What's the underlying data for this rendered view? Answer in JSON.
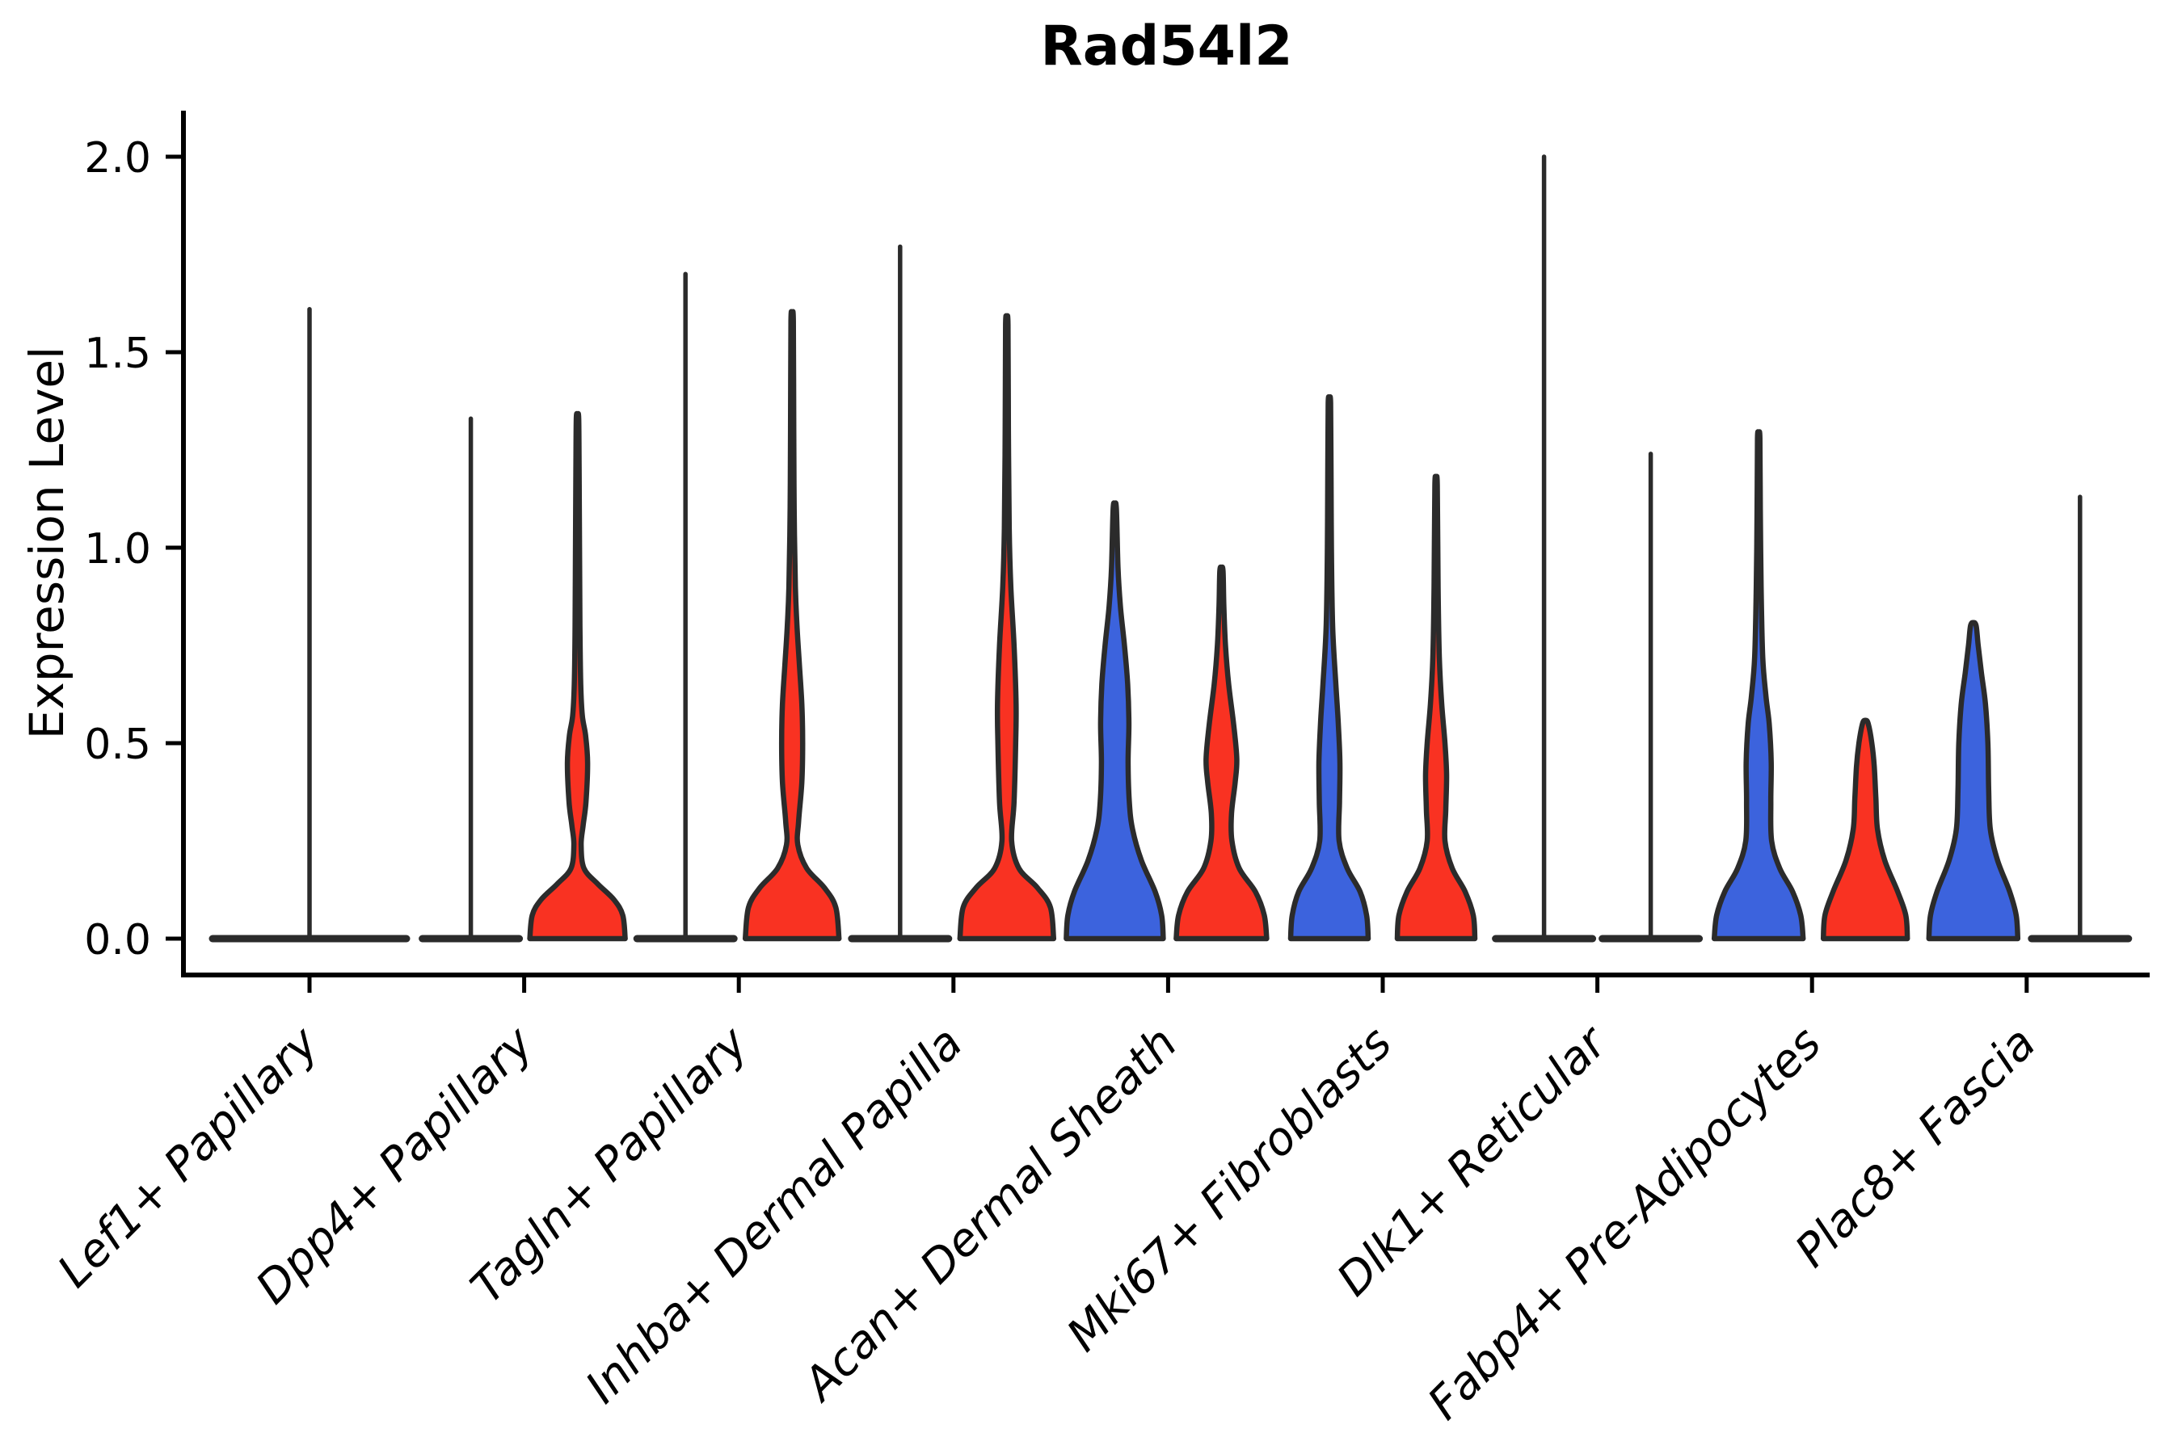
{
  "chart_data": {
    "type": "violin",
    "title": "Rad54l2",
    "ylabel": "Expression Level",
    "xlabel": "",
    "grid": false,
    "legend": null,
    "ylim": [
      -0.09,
      2.11
    ],
    "ytick_labels": [
      "0.0",
      "0.5",
      "1.0",
      "1.5",
      "2.0"
    ],
    "ytick_values": [
      0.0,
      0.5,
      1.0,
      1.5,
      2.0
    ],
    "palette": {
      "blue": "#3C63DD",
      "red": "#F93222",
      "outline": "#2B2B2B",
      "axis": "#000000"
    },
    "categories": [
      {
        "label": "Lef1+ Papillary",
        "violins": [
          {
            "condition": "blue",
            "kind": "spike",
            "max": 1.61,
            "offset": 0,
            "flat_half": 120
          },
          {
            "condition": "red",
            "kind": "none",
            "max": 0.0
          }
        ]
      },
      {
        "label": "Dpp4+ Papillary",
        "violins": [
          {
            "condition": "blue",
            "kind": "spike",
            "max": 1.33,
            "offset": -66,
            "flat_half": 60
          },
          {
            "condition": "red",
            "kind": "body",
            "max": 1.33,
            "offset": 66,
            "profile": [
              [
                0,
                59
              ],
              [
                0.06,
                56
              ],
              [
                0.1,
                45
              ],
              [
                0.14,
                25
              ],
              [
                0.18,
                8
              ],
              [
                0.24,
                4.5
              ],
              [
                0.29,
                7
              ],
              [
                0.35,
                10.5
              ],
              [
                0.45,
                12.5
              ],
              [
                0.52,
                10
              ],
              [
                0.57,
                6
              ],
              [
                0.65,
                4
              ],
              [
                0.8,
                3
              ],
              [
                1.0,
                2.5
              ],
              [
                1.2,
                2
              ],
              [
                1.33,
                1.5
              ]
            ]
          }
        ]
      },
      {
        "label": "Tagln+ Papillary",
        "violins": [
          {
            "condition": "blue",
            "kind": "spike",
            "max": 1.7,
            "offset": -66,
            "flat_half": 60
          },
          {
            "condition": "red",
            "kind": "body",
            "max": 1.58,
            "offset": 66,
            "profile": [
              [
                0,
                58
              ],
              [
                0.08,
                54
              ],
              [
                0.13,
                40
              ],
              [
                0.18,
                18
              ],
              [
                0.24,
                7
              ],
              [
                0.3,
                8
              ],
              [
                0.4,
                12
              ],
              [
                0.5,
                13
              ],
              [
                0.6,
                12
              ],
              [
                0.7,
                9
              ],
              [
                0.8,
                6
              ],
              [
                0.9,
                4
              ],
              [
                1.1,
                2.5
              ],
              [
                1.3,
                2
              ],
              [
                1.58,
                1.5
              ]
            ]
          }
        ]
      },
      {
        "label": "Inhba+ Dermal Papilla",
        "violins": [
          {
            "condition": "blue",
            "kind": "spike",
            "max": 1.77,
            "offset": -66,
            "flat_half": 60
          },
          {
            "condition": "red",
            "kind": "body",
            "max": 1.57,
            "offset": 66,
            "profile": [
              [
                0,
                58
              ],
              [
                0.08,
                54
              ],
              [
                0.13,
                38
              ],
              [
                0.18,
                15
              ],
              [
                0.25,
                6
              ],
              [
                0.35,
                9
              ],
              [
                0.5,
                11
              ],
              [
                0.6,
                11.5
              ],
              [
                0.75,
                9
              ],
              [
                0.9,
                5
              ],
              [
                1.05,
                3
              ],
              [
                1.3,
                2
              ],
              [
                1.57,
                1.5
              ]
            ]
          }
        ]
      },
      {
        "label": "Acan+ Dermal Sheath",
        "violins": [
          {
            "condition": "blue",
            "kind": "body",
            "max": 1.1,
            "offset": -66,
            "profile": [
              [
                0,
                60
              ],
              [
                0.06,
                58
              ],
              [
                0.12,
                50
              ],
              [
                0.2,
                33
              ],
              [
                0.28,
                22
              ],
              [
                0.35,
                18
              ],
              [
                0.45,
                16.5
              ],
              [
                0.55,
                17.5
              ],
              [
                0.65,
                16
              ],
              [
                0.75,
                12
              ],
              [
                0.85,
                7
              ],
              [
                0.95,
                4
              ],
              [
                1.1,
                2
              ]
            ]
          },
          {
            "condition": "red",
            "kind": "body",
            "max": 0.94,
            "offset": 66,
            "profile": [
              [
                0,
                56
              ],
              [
                0.06,
                53
              ],
              [
                0.12,
                42
              ],
              [
                0.18,
                22
              ],
              [
                0.25,
                13
              ],
              [
                0.32,
                12.5
              ],
              [
                0.4,
                17
              ],
              [
                0.46,
                19
              ],
              [
                0.55,
                15
              ],
              [
                0.65,
                9
              ],
              [
                0.75,
                5
              ],
              [
                0.85,
                3
              ],
              [
                0.94,
                2
              ]
            ]
          }
        ]
      },
      {
        "label": "Mki67+ Fibroblasts",
        "violins": [
          {
            "condition": "blue",
            "kind": "body",
            "max": 1.37,
            "offset": -66,
            "profile": [
              [
                0,
                48
              ],
              [
                0.06,
                46
              ],
              [
                0.12,
                38
              ],
              [
                0.18,
                22
              ],
              [
                0.25,
                12
              ],
              [
                0.35,
                12.5
              ],
              [
                0.45,
                13
              ],
              [
                0.55,
                11
              ],
              [
                0.65,
                8
              ],
              [
                0.8,
                4
              ],
              [
                1.0,
                2.5
              ],
              [
                1.2,
                2
              ],
              [
                1.37,
                1.5
              ]
            ]
          },
          {
            "condition": "red",
            "kind": "body",
            "max": 1.16,
            "offset": 66,
            "profile": [
              [
                0,
                48
              ],
              [
                0.06,
                46
              ],
              [
                0.12,
                36
              ],
              [
                0.18,
                20
              ],
              [
                0.25,
                11
              ],
              [
                0.33,
                12
              ],
              [
                0.42,
                13
              ],
              [
                0.5,
                11
              ],
              [
                0.6,
                7
              ],
              [
                0.72,
                4
              ],
              [
                0.9,
                2.5
              ],
              [
                1.16,
                1.5
              ]
            ]
          }
        ]
      },
      {
        "label": "Dlk1+ Reticular",
        "violins": [
          {
            "condition": "blue",
            "kind": "spike",
            "max": 2.0,
            "offset": -66,
            "flat_half": 60
          },
          {
            "condition": "red",
            "kind": "spike",
            "max": 1.24,
            "offset": 66,
            "flat_half": 60
          }
        ]
      },
      {
        "label": "Fabp4+ Pre-Adipocytes",
        "violins": [
          {
            "condition": "blue",
            "kind": "body",
            "max": 1.28,
            "offset": -66,
            "profile": [
              [
                0,
                55
              ],
              [
                0.06,
                52
              ],
              [
                0.12,
                42
              ],
              [
                0.18,
                26
              ],
              [
                0.25,
                16
              ],
              [
                0.35,
                15
              ],
              [
                0.45,
                15.5
              ],
              [
                0.55,
                13
              ],
              [
                0.62,
                9
              ],
              [
                0.72,
                5
              ],
              [
                0.9,
                3
              ],
              [
                1.1,
                2
              ],
              [
                1.28,
                1.5
              ]
            ]
          },
          {
            "condition": "red",
            "kind": "body",
            "max": 0.55,
            "offset": 66,
            "profile": [
              [
                0,
                52
              ],
              [
                0.06,
                50
              ],
              [
                0.12,
                40
              ],
              [
                0.2,
                24
              ],
              [
                0.28,
                15
              ],
              [
                0.36,
                13
              ],
              [
                0.44,
                11
              ],
              [
                0.5,
                8
              ],
              [
                0.55,
                3.5
              ]
            ]
          }
        ]
      },
      {
        "label": "Plac8+ Fascia",
        "violins": [
          {
            "condition": "blue",
            "kind": "body",
            "max": 0.8,
            "offset": -66,
            "profile": [
              [
                0,
                55
              ],
              [
                0.06,
                53
              ],
              [
                0.12,
                45
              ],
              [
                0.2,
                30
              ],
              [
                0.28,
                21
              ],
              [
                0.38,
                19
              ],
              [
                0.5,
                18
              ],
              [
                0.6,
                15
              ],
              [
                0.68,
                10
              ],
              [
                0.75,
                6
              ],
              [
                0.8,
                3.5
              ]
            ]
          },
          {
            "condition": "red",
            "kind": "spike",
            "max": 1.13,
            "offset": 66,
            "flat_half": 60
          }
        ]
      }
    ]
  }
}
